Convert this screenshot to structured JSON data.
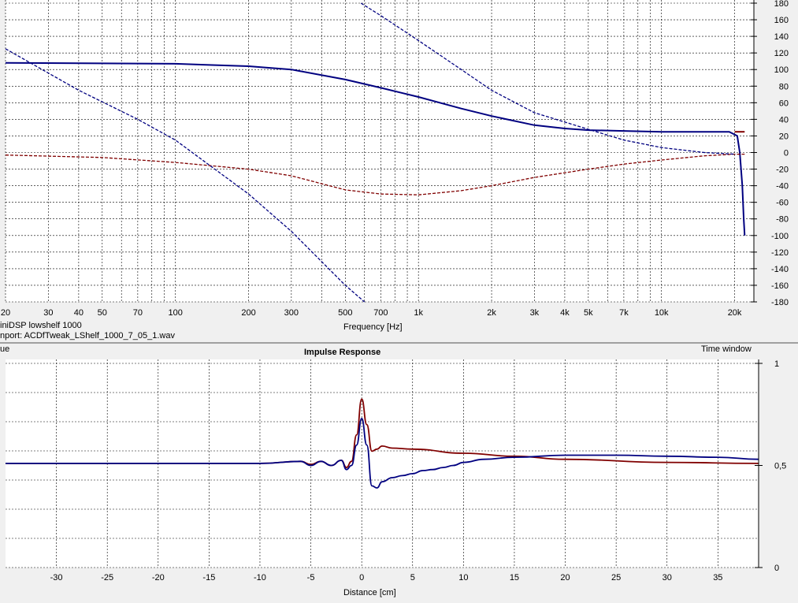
{
  "top_panel": {
    "info_line1": "iniDSP lowshelf 1000",
    "info_line2": "nport: ACDfTweak_LShelf_1000_7_05_1.wav"
  },
  "bottom_panel": {
    "left_label": "ue",
    "time_window_label": "Time window"
  },
  "colors": {
    "blue": "#000080",
    "red": "#800000",
    "grid": "#000000",
    "background": "#ffffff"
  },
  "chart_data": [
    {
      "type": "line",
      "title": "",
      "xlabel": "Frequency [Hz]",
      "ylabel": "",
      "x_scale": "log",
      "xlim": [
        20,
        24000
      ],
      "ylim": [
        -180,
        180
      ],
      "x_ticks": [
        20,
        30,
        40,
        50,
        70,
        100,
        200,
        300,
        500,
        700,
        1000,
        2000,
        3000,
        4000,
        5000,
        7000,
        10000,
        20000
      ],
      "x_tick_labels": [
        "20",
        "30",
        "40",
        "50",
        "70",
        "100",
        "200",
        "300",
        "500",
        "700",
        "1k",
        "2k",
        "3k",
        "4k",
        "5k",
        "7k",
        "10k",
        "20k"
      ],
      "y_ticks": [
        180,
        160,
        140,
        120,
        100,
        80,
        60,
        40,
        20,
        0,
        -20,
        -40,
        -60,
        -80,
        -100,
        -120,
        -140,
        -160,
        -180
      ],
      "y_tick_labels": [
        "180",
        "160",
        "140",
        "120",
        "100",
        "80",
        "60",
        "40",
        "20",
        "0",
        "-20",
        "-40",
        "-60",
        "-80",
        "-100",
        "-120",
        "-140",
        "-160",
        "-180"
      ],
      "grid": true,
      "series": [
        {
          "color": "#000080",
          "style": "solid",
          "x": [
            20,
            100,
            200,
            300,
            500,
            700,
            1000,
            1500,
            2000,
            3000,
            4000,
            5000,
            7000,
            10000,
            15000,
            19000,
            20500,
            21000,
            21500,
            21800,
            22000
          ],
          "y": [
            108,
            107,
            104,
            100,
            88,
            78,
            67,
            53,
            44,
            33,
            29,
            27,
            26,
            25,
            25,
            25,
            20,
            0,
            -40,
            -80,
            -100
          ]
        },
        {
          "color": "#800000",
          "style": "solid",
          "x": [
            20000,
            22000
          ],
          "y": [
            25,
            25
          ]
        },
        {
          "color": "#800000",
          "style": "dashed",
          "x": [
            20,
            50,
            100,
            200,
            300,
            500,
            700,
            1000,
            1500,
            2000,
            3000,
            5000,
            7000,
            10000,
            15000,
            20000,
            22000
          ],
          "y": [
            -3,
            -6,
            -12,
            -20,
            -28,
            -45,
            -50,
            -51,
            -46,
            -40,
            -30,
            -20,
            -14,
            -9,
            -4,
            -2,
            -2
          ]
        },
        {
          "color": "#000080",
          "style": "dashed",
          "x": [
            20,
            40,
            70,
            100,
            200,
            300,
            500,
            600
          ],
          "y": [
            125,
            75,
            40,
            15,
            -50,
            -95,
            -160,
            -180
          ]
        },
        {
          "color": "#000080",
          "style": "dashed",
          "x": [
            580,
            700,
            1000,
            1500,
            2000,
            3000,
            5000,
            7000,
            10000,
            15000,
            20000
          ],
          "y": [
            180,
            165,
            135,
            100,
            75,
            48,
            28,
            15,
            6,
            0,
            -2
          ]
        }
      ]
    },
    {
      "type": "line",
      "title": "Impulse Response",
      "xlabel": "Distance [cm]",
      "ylabel": "",
      "xlim": [
        -35,
        39
      ],
      "ylim": [
        0,
        1
      ],
      "x_ticks": [
        -30,
        -25,
        -20,
        -15,
        -10,
        -5,
        0,
        5,
        10,
        15,
        20,
        25,
        30,
        35
      ],
      "x_tick_labels": [
        "-30",
        "-25",
        "-20",
        "-15",
        "-10",
        "-5",
        "0",
        "5",
        "10",
        "15",
        "20",
        "25",
        "30",
        "35"
      ],
      "y_ticks": [
        1,
        0.5,
        0
      ],
      "y_tick_labels": [
        "1",
        "0,5",
        "0"
      ],
      "grid": true,
      "series": [
        {
          "color": "#800000",
          "x": [
            -35,
            -10,
            -6,
            -5,
            -4,
            -3,
            -2,
            -1.5,
            -1,
            -0.5,
            0,
            0.5,
            1,
            1.5,
            2,
            3,
            5,
            10,
            15,
            20,
            30,
            39
          ],
          "y": [
            0.51,
            0.51,
            0.52,
            0.505,
            0.52,
            0.5,
            0.525,
            0.49,
            0.52,
            0.65,
            0.825,
            0.7,
            0.57,
            0.58,
            0.595,
            0.585,
            0.58,
            0.56,
            0.545,
            0.53,
            0.515,
            0.51
          ],
          "smooth": true
        },
        {
          "color": "#000080",
          "x": [
            -35,
            -10,
            -6,
            -5,
            -4,
            -3,
            -2,
            -1.5,
            -1,
            -0.5,
            0,
            0.5,
            1,
            1.5,
            2,
            3,
            4,
            5,
            6,
            7,
            8,
            9,
            10,
            12,
            15,
            20,
            25,
            30,
            35,
            39
          ],
          "y": [
            0.51,
            0.51,
            0.52,
            0.5,
            0.52,
            0.5,
            0.525,
            0.48,
            0.5,
            0.6,
            0.73,
            0.6,
            0.4,
            0.39,
            0.42,
            0.44,
            0.45,
            0.46,
            0.475,
            0.48,
            0.49,
            0.5,
            0.515,
            0.53,
            0.54,
            0.55,
            0.55,
            0.545,
            0.54,
            0.53
          ],
          "smooth": true
        }
      ]
    }
  ]
}
